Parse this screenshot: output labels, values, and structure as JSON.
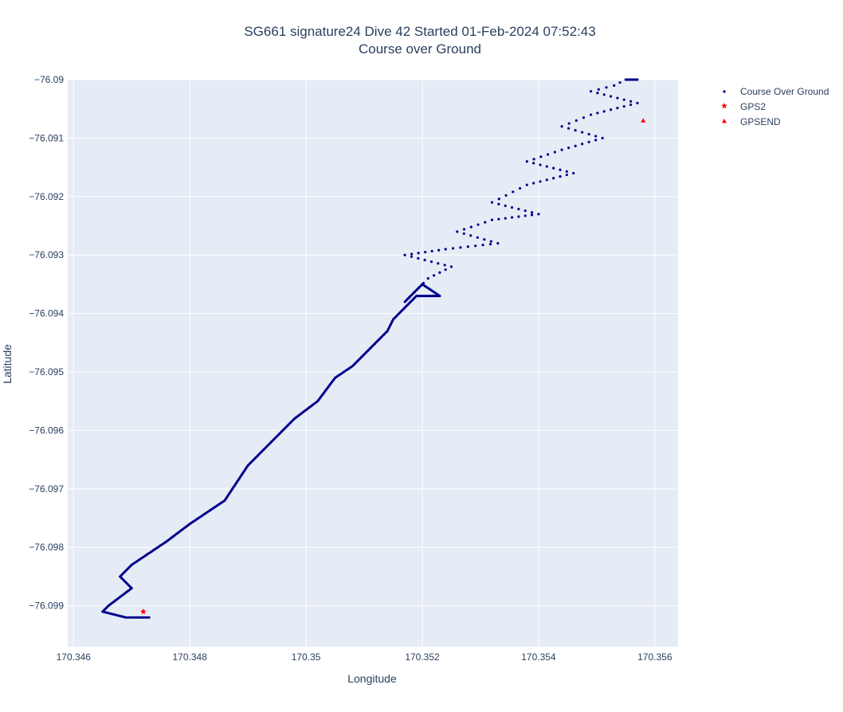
{
  "chart_data": {
    "type": "scatter",
    "title": "SG661 signature24 Dive 42 Started 01-Feb-2024 07:52:43",
    "subtitle": "Course over Ground",
    "xlabel": "Longitude",
    "ylabel": "Latitude",
    "xlim": [
      170.3459,
      170.3564
    ],
    "ylim": [
      -76.0997,
      -76.09
    ],
    "x_ticks": [
      170.346,
      170.348,
      170.35,
      170.352,
      170.354,
      170.356
    ],
    "x_tick_labels": [
      "170.346",
      "170.348",
      "170.35",
      "170.352",
      "170.354",
      "170.356"
    ],
    "y_ticks": [
      -76.09,
      -76.091,
      -76.092,
      -76.093,
      -76.094,
      -76.095,
      -76.096,
      -76.097,
      -76.098,
      -76.099
    ],
    "y_tick_labels": [
      "−76.09",
      "−76.091",
      "−76.092",
      "−76.093",
      "−76.094",
      "−76.095",
      "−76.096",
      "−76.097",
      "−76.098",
      "−76.099"
    ],
    "grid": true,
    "legend_position": "top-right",
    "colors": {
      "plot_bg": "#e5ecf6",
      "grid": "#ffffff",
      "cog": "#00008b",
      "gps": "#ff0000",
      "text": "#2a3f5f"
    },
    "series": [
      {
        "name": "Course Over Ground",
        "marker": "dot",
        "x": [
          170.3473,
          170.3469,
          170.3465,
          170.3466,
          170.347,
          170.3468,
          170.347,
          170.3473,
          170.3476,
          170.348,
          170.3483,
          170.3486,
          170.3488,
          170.349,
          170.3493,
          170.3495,
          170.3498,
          170.3502,
          170.3505,
          170.3508,
          170.3511,
          170.3514,
          170.3515,
          170.3517,
          170.3519,
          170.3523,
          170.352,
          170.3517,
          170.3521,
          170.3525,
          170.3517,
          170.3524,
          170.3533,
          170.3526,
          170.3532,
          170.354,
          170.3532,
          170.3538,
          170.3546,
          170.3538,
          170.3544,
          170.3551,
          170.3544,
          170.3549,
          170.3557,
          170.3549,
          170.3553,
          170.3555,
          170.3557
        ],
        "y": [
          -76.0992,
          -76.0992,
          -76.0991,
          -76.099,
          -76.0987,
          -76.0985,
          -76.0983,
          -76.0981,
          -76.0979,
          -76.0976,
          -76.0974,
          -76.0972,
          -76.0969,
          -76.0966,
          -76.0963,
          -76.0961,
          -76.0958,
          -76.0955,
          -76.0951,
          -76.0949,
          -76.0946,
          -76.0943,
          -76.0941,
          -76.0939,
          -76.0937,
          -76.0937,
          -76.0935,
          -76.0938,
          -76.0934,
          -76.0932,
          -76.093,
          -76.0929,
          -76.0928,
          -76.0926,
          -76.0924,
          -76.0923,
          -76.0921,
          -76.0918,
          -76.0916,
          -76.0914,
          -76.0912,
          -76.091,
          -76.0908,
          -76.0906,
          -76.0904,
          -76.0902,
          -76.0901,
          -76.09,
          -76.09
        ]
      },
      {
        "name": "GPS2",
        "marker": "star",
        "x": [
          170.3472
        ],
        "y": [
          -76.0991
        ]
      },
      {
        "name": "GPSEND",
        "marker": "triangle-up",
        "x": [
          170.3558
        ],
        "y": [
          -76.0907
        ]
      }
    ]
  }
}
